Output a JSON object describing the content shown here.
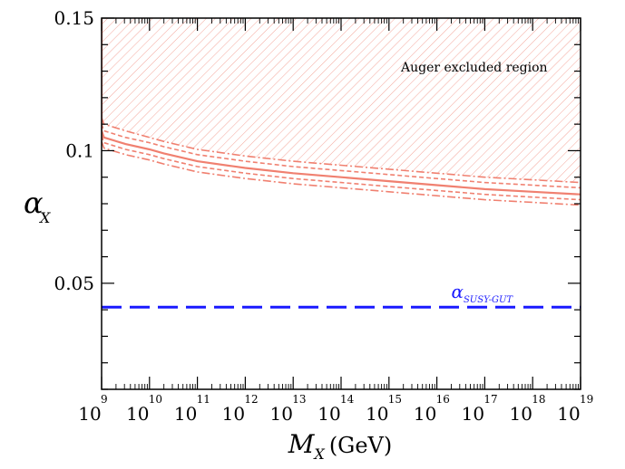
{
  "chart_data": {
    "type": "line",
    "title": "",
    "x_scale": "log",
    "xlim": [
      1000000000.0,
      1e+19
    ],
    "ylim": [
      0.01,
      0.15
    ],
    "xlabel": {
      "main": "M",
      "sub": "X",
      "unit": "(GeV)"
    },
    "ylabel": {
      "main": "α",
      "sub": "X"
    },
    "x_ticks": [
      {
        "base": "10",
        "exp": "9"
      },
      {
        "base": "10",
        "exp": "10"
      },
      {
        "base": "10",
        "exp": "11"
      },
      {
        "base": "10",
        "exp": "12"
      },
      {
        "base": "10",
        "exp": "13"
      },
      {
        "base": "10",
        "exp": "14"
      },
      {
        "base": "10",
        "exp": "15"
      },
      {
        "base": "10",
        "exp": "16"
      },
      {
        "base": "10",
        "exp": "17"
      },
      {
        "base": "10",
        "exp": "18"
      },
      {
        "base": "10",
        "exp": "19"
      }
    ],
    "y_ticks": [
      "0.05",
      "0.1",
      "0.15"
    ],
    "y_tick_values": [
      0.05,
      0.1,
      0.15
    ],
    "region_label": "Auger excluded region",
    "reference": {
      "label_main": "α",
      "label_sub": "SUSY-GUT",
      "value": 0.041,
      "color": "#1a1aff"
    },
    "curve_color": "#f08070",
    "series": [
      {
        "name": "upper dash-dot",
        "style": "dashdot",
        "x": [
          9.0,
          9.05,
          9.5,
          10.0,
          10.3,
          11,
          12,
          13,
          14,
          15,
          16,
          17,
          18,
          19
        ],
        "y": [
          0.1125,
          0.11,
          0.1075,
          0.105,
          0.1035,
          0.1005,
          0.098,
          0.096,
          0.0945,
          0.093,
          0.0915,
          0.09,
          0.089,
          0.088
        ]
      },
      {
        "name": "upper dashed",
        "style": "dashed",
        "x": [
          9.0,
          9.05,
          9.5,
          10.0,
          10.3,
          11,
          12,
          13,
          14,
          15,
          16,
          17,
          18,
          19
        ],
        "y": [
          0.11,
          0.1075,
          0.105,
          0.103,
          0.1015,
          0.0985,
          0.096,
          0.094,
          0.0925,
          0.091,
          0.0895,
          0.088,
          0.087,
          0.086
        ]
      },
      {
        "name": "central",
        "style": "solid",
        "vertical_edge": true,
        "x": [
          9.0,
          9.05,
          9.5,
          10.0,
          10.3,
          11,
          12,
          13,
          14,
          15,
          16,
          17,
          18,
          19
        ],
        "y": [
          0.1075,
          0.105,
          0.1025,
          0.1005,
          0.099,
          0.096,
          0.0935,
          0.0915,
          0.09,
          0.0885,
          0.087,
          0.0855,
          0.0845,
          0.0835
        ]
      },
      {
        "name": "lower dashed",
        "style": "dashed",
        "x": [
          9.0,
          9.05,
          9.5,
          10.0,
          10.3,
          11,
          12,
          13,
          14,
          15,
          16,
          17,
          18,
          19
        ],
        "y": [
          0.1055,
          0.103,
          0.1005,
          0.0985,
          0.097,
          0.094,
          0.0915,
          0.0895,
          0.088,
          0.0865,
          0.085,
          0.0835,
          0.0825,
          0.0815
        ]
      },
      {
        "name": "lower dash-dot",
        "style": "dashdot",
        "x": [
          9.0,
          9.05,
          9.5,
          10.0,
          10.3,
          11,
          12,
          13,
          14,
          15,
          16,
          17,
          18,
          19
        ],
        "y": [
          0.1035,
          0.101,
          0.0985,
          0.0965,
          0.095,
          0.092,
          0.0895,
          0.0875,
          0.086,
          0.0845,
          0.083,
          0.0815,
          0.0805,
          0.0795
        ]
      }
    ]
  }
}
